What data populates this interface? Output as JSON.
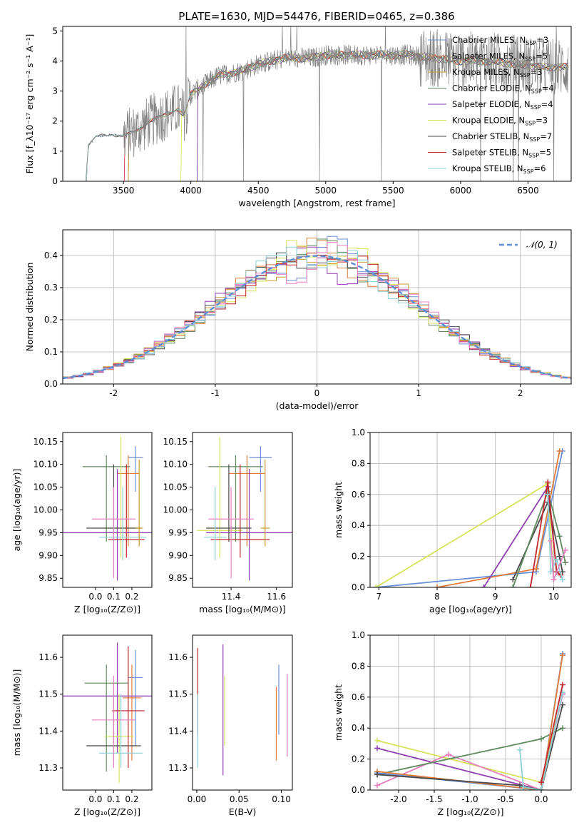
{
  "figure": {
    "title": "PLATE=1630, MJD=54476, FIBERID=0465, z=0.386"
  },
  "colors": {
    "chabrier_miles": "#6a8fd6",
    "salpeter_miles": "#e07b39",
    "kroupa_miles": "#c99a2e",
    "chabrier_elodie": "#5f8a5f",
    "salpeter_elodie": "#8e3fb0",
    "kroupa_elodie": "#d6e35a",
    "chabrier_stelib": "#4a4a4a",
    "salpeter_stelib": "#c1272d",
    "kroupa_stelib": "#8ecfd6",
    "extra_pink": "#e67fbf",
    "spectrum": "#808080"
  },
  "chart_data": [
    {
      "id": "spectrum",
      "type": "line",
      "xlabel": "wavelength [Angstrom, rest frame]",
      "ylabel": "Flux [f_λ10⁻¹⁷ erg cm⁻² s⁻¹ A⁻¹]",
      "xlim": [
        3050,
        6820
      ],
      "ylim": [
        0,
        5.15
      ],
      "xticks": [
        3500,
        4000,
        4500,
        5000,
        5500,
        6000,
        6500
      ],
      "yticks": [
        0,
        1,
        2,
        3,
        4,
        5
      ],
      "legend_position": "top-right",
      "spectrum_anchors": {
        "x": [
          3220,
          3240,
          3300,
          3400,
          3500,
          3600,
          3700,
          3800,
          3900,
          3950,
          4000,
          4100,
          4200,
          4300,
          4400,
          4500,
          4600,
          4700,
          4800,
          4900,
          5000,
          5200,
          5400,
          5600,
          5800,
          6000,
          6200,
          6400,
          6600,
          6800
        ],
        "y": [
          0,
          1.2,
          1.5,
          1.55,
          1.5,
          1.7,
          2.0,
          2.2,
          2.4,
          2.2,
          2.9,
          3.2,
          3.5,
          3.6,
          3.7,
          3.9,
          4.0,
          4.1,
          4.1,
          4.1,
          4.2,
          4.2,
          4.2,
          4.2,
          4.1,
          4.0,
          4.0,
          3.9,
          3.8,
          3.8
        ]
      },
      "series": [
        {
          "name": "Chabrier MILES",
          "nssp": "3",
          "color_key": "chabrier_miles"
        },
        {
          "name": "Salpeter MILES",
          "nssp": "5",
          "color_key": "salpeter_miles"
        },
        {
          "name": "Kroupa MILES",
          "nssp": "3",
          "color_key": "kroupa_miles"
        },
        {
          "name": "Chabrier ELODIE",
          "nssp": "4",
          "color_key": "chabrier_elodie"
        },
        {
          "name": "Salpeter ELODIE",
          "nssp": "4",
          "color_key": "salpeter_elodie"
        },
        {
          "name": "Kroupa ELODIE",
          "nssp": "3",
          "color_key": "kroupa_elodie"
        },
        {
          "name": "Chabrier STELIB",
          "nssp": "7",
          "color_key": "chabrier_stelib"
        },
        {
          "name": "Salpeter STELIB",
          "nssp": "5",
          "color_key": "salpeter_stelib"
        },
        {
          "name": "Kroupa STELIB",
          "nssp": "6",
          "color_key": "kroupa_stelib"
        }
      ]
    },
    {
      "id": "residuals",
      "type": "histogram",
      "xlabel": "(data-model)/error",
      "ylabel": "Normed distribution",
      "xlim": [
        -2.5,
        2.5
      ],
      "ylim": [
        0,
        0.48
      ],
      "xticks": [
        -2,
        -1,
        0,
        1,
        2
      ],
      "yticks": [
        0.0,
        0.1,
        0.2,
        0.3,
        0.4
      ],
      "grid": true,
      "legend_position": "top-right",
      "legend_label": "𝒩(0, 1)"
    },
    {
      "id": "age_vs_Z",
      "type": "errorbar",
      "xlabel": "Z [log₁₀(Z/Z⊙)]",
      "ylabel": "age  [log₁₀(age/yr)]",
      "xlim": [
        -0.18,
        0.31
      ],
      "ylim": [
        9.83,
        10.17
      ],
      "xticks": [
        0.0,
        0.1,
        0.2
      ],
      "yticks": [
        9.85,
        9.9,
        9.95,
        10.0,
        10.05,
        10.1,
        10.15
      ],
      "points": [
        {
          "c": "chabrier_miles",
          "x": 0.22,
          "xe": 0.04,
          "y": 10.115,
          "ylo": 10.04,
          "yhi": 10.14
        },
        {
          "c": "salpeter_miles",
          "x": 0.18,
          "xe": 0.06,
          "y": 10.08,
          "ylo": 9.92,
          "yhi": 10.12
        },
        {
          "c": "chabrier_elodie",
          "x": 0.06,
          "xe": 0.13,
          "y": 10.095,
          "ylo": 9.93,
          "yhi": 10.12
        },
        {
          "c": "salpeter_elodie",
          "x": 0.12,
          "xe": 0.3,
          "y": 9.95,
          "ylo": 9.845,
          "yhi": 10.09
        },
        {
          "c": "kroupa_elodie",
          "x": 0.14,
          "xe": 0.1,
          "y": 9.96,
          "ylo": 9.895,
          "yhi": 10.16
        },
        {
          "c": "chabrier_stelib",
          "x": 0.1,
          "xe": 0.15,
          "y": 9.96,
          "ylo": 9.93,
          "yhi": 10.1
        },
        {
          "c": "salpeter_stelib",
          "x": 0.17,
          "xe": 0.1,
          "y": 9.935,
          "ylo": 9.895,
          "yhi": 10.1
        },
        {
          "c": "kroupa_stelib",
          "x": 0.15,
          "xe": 0.13,
          "y": 9.94,
          "ylo": 9.89,
          "yhi": 10.05
        },
        {
          "c": "extra_pink",
          "x": 0.1,
          "xe": 0.12,
          "y": 9.98,
          "ylo": 9.85,
          "yhi": 10.05
        },
        {
          "c": "kroupa_miles",
          "x": 0.24,
          "xe": 0.02,
          "y": 9.96,
          "ylo": 9.92,
          "yhi": 10.11
        }
      ]
    },
    {
      "id": "age_vs_mass",
      "type": "errorbar",
      "xlabel": "mass [log₁₀(M/M⊙)]",
      "ylabel": "",
      "xlim": [
        11.23,
        11.67
      ],
      "ylim": [
        9.83,
        10.17
      ],
      "xticks": [
        11.4,
        11.6
      ],
      "yticks": [
        9.85,
        9.9,
        9.95,
        10.0,
        10.05,
        10.1,
        10.15
      ],
      "points": [
        {
          "c": "chabrier_miles",
          "x": 11.53,
          "xe": 0.05,
          "y": 10.115,
          "ylo": 10.04,
          "yhi": 10.14
        },
        {
          "c": "salpeter_miles",
          "x": 11.47,
          "xe": 0.08,
          "y": 10.08,
          "ylo": 9.92,
          "yhi": 10.12
        },
        {
          "c": "chabrier_elodie",
          "x": 11.42,
          "xe": 0.12,
          "y": 10.095,
          "ylo": 9.93,
          "yhi": 10.12
        },
        {
          "c": "salpeter_elodie",
          "x": 11.48,
          "xe": 0.19,
          "y": 9.95,
          "ylo": 9.845,
          "yhi": 10.09
        },
        {
          "c": "kroupa_elodie",
          "x": 11.35,
          "xe": 0.1,
          "y": 9.955,
          "ylo": 9.895,
          "yhi": 10.16
        },
        {
          "c": "chabrier_stelib",
          "x": 11.39,
          "xe": 0.1,
          "y": 9.96,
          "ylo": 9.93,
          "yhi": 10.1
        },
        {
          "c": "salpeter_stelib",
          "x": 11.44,
          "xe": 0.13,
          "y": 9.935,
          "ylo": 9.895,
          "yhi": 10.1
        },
        {
          "c": "kroupa_stelib",
          "x": 11.33,
          "xe": 0.05,
          "y": 9.94,
          "ylo": 9.89,
          "yhi": 10.05
        },
        {
          "c": "extra_pink",
          "x": 11.4,
          "xe": 0.1,
          "y": 9.98,
          "ylo": 9.85,
          "yhi": 10.05
        },
        {
          "c": "kroupa_miles",
          "x": 11.55,
          "xe": 0.02,
          "y": 9.96,
          "ylo": 9.92,
          "yhi": 10.11
        }
      ]
    },
    {
      "id": "weight_vs_age",
      "type": "line",
      "xlabel": "age  [log₁₀(age/yr)]",
      "ylabel": "mass weight",
      "xlim": [
        6.85,
        10.3
      ],
      "ylim": [
        0,
        1.0
      ],
      "xticks": [
        7,
        8,
        9,
        10
      ],
      "yticks": [
        0.0,
        0.2,
        0.4,
        0.6,
        0.8,
        1.0
      ],
      "grid": true,
      "series": [
        {
          "c": "chabrier_miles",
          "x": [
            6.95,
            9.7,
            10.15
          ],
          "y": [
            0.0,
            0.1,
            0.88
          ]
        },
        {
          "c": "salpeter_miles",
          "x": [
            8.0,
            9.7,
            10.1
          ],
          "y": [
            0.0,
            0.12,
            0.88
          ]
        },
        {
          "c": "kroupa_elodie",
          "x": [
            6.95,
            9.9,
            10.0
          ],
          "y": [
            0.0,
            0.67,
            0.05
          ]
        },
        {
          "c": "salpeter_elodie",
          "x": [
            8.8,
            9.9,
            10.05
          ],
          "y": [
            0.0,
            0.65,
            0.1
          ]
        },
        {
          "c": "chabrier_stelib",
          "x": [
            9.3,
            9.9,
            10.1,
            10.15
          ],
          "y": [
            0.05,
            0.55,
            0.2,
            0.1
          ]
        },
        {
          "c": "chabrier_elodie",
          "x": [
            9.3,
            9.9,
            10.1,
            10.2
          ],
          "y": [
            0.0,
            0.62,
            0.33,
            0.16
          ]
        },
        {
          "c": "salpeter_stelib",
          "x": [
            9.6,
            9.9,
            10.05,
            10.12
          ],
          "y": [
            0.0,
            0.68,
            0.1,
            0.08
          ]
        },
        {
          "c": "kroupa_stelib",
          "x": [
            9.9,
            9.95,
            10.05,
            10.15
          ],
          "y": [
            0.6,
            0.1,
            0.18,
            0.05
          ]
        },
        {
          "c": "extra_pink",
          "x": [
            9.95,
            10.0,
            10.2
          ],
          "y": [
            0.3,
            0.05,
            0.24
          ]
        }
      ]
    },
    {
      "id": "mass_vs_Z",
      "type": "errorbar",
      "xlabel": "Z [log₁₀(Z/Z⊙)]",
      "ylabel": "mass [log₁₀(M/M⊙)]",
      "xlim": [
        -0.18,
        0.31
      ],
      "ylim": [
        11.24,
        11.66
      ],
      "xticks": [
        0.0,
        0.1,
        0.2
      ],
      "yticks": [
        11.3,
        11.4,
        11.5,
        11.6
      ],
      "points": [
        {
          "c": "chabrier_miles",
          "x": 0.22,
          "xe": 0.04,
          "y": 11.545,
          "ylo": 11.36,
          "yhi": 11.62
        },
        {
          "c": "salpeter_miles",
          "x": 0.2,
          "xe": 0.05,
          "y": 11.49,
          "ylo": 11.32,
          "yhi": 11.58
        },
        {
          "c": "chabrier_elodie",
          "x": 0.06,
          "xe": 0.12,
          "y": 11.53,
          "ylo": 11.29,
          "yhi": 11.58
        },
        {
          "c": "salpeter_elodie",
          "x": 0.12,
          "xe": 0.3,
          "y": 11.495,
          "ylo": 11.34,
          "yhi": 11.64
        },
        {
          "c": "kroupa_elodie",
          "x": 0.13,
          "xe": 0.08,
          "y": 11.385,
          "ylo": 11.26,
          "yhi": 11.5
        },
        {
          "c": "chabrier_stelib",
          "x": 0.1,
          "xe": 0.15,
          "y": 11.36,
          "ylo": 11.32,
          "yhi": 11.5
        },
        {
          "c": "salpeter_stelib",
          "x": 0.18,
          "xe": 0.09,
          "y": 11.455,
          "ylo": 11.3,
          "yhi": 11.63
        },
        {
          "c": "kroupa_stelib",
          "x": 0.14,
          "xe": 0.12,
          "y": 11.34,
          "ylo": 11.3,
          "yhi": 11.5
        },
        {
          "c": "extra_pink",
          "x": 0.1,
          "xe": 0.12,
          "y": 11.43,
          "ylo": 11.3,
          "yhi": 11.55
        }
      ]
    },
    {
      "id": "mass_vs_ebv",
      "type": "errorbar",
      "xlabel": "E(B-V)",
      "ylabel": "",
      "xlim": [
        -0.005,
        0.113
      ],
      "ylim": [
        11.24,
        11.66
      ],
      "xticks": [
        0.0,
        0.05,
        0.1
      ],
      "yticks": [
        11.3,
        11.4,
        11.5,
        11.6
      ],
      "points": [
        {
          "c": "salpeter_stelib",
          "x": 0.001,
          "y": 11.52,
          "ylo": 11.39,
          "yhi": 11.625
        },
        {
          "c": "kroupa_stelib",
          "x": 0.001,
          "y": 11.4,
          "ylo": 11.3,
          "yhi": 11.5
        },
        {
          "c": "salpeter_elodie",
          "x": 0.031,
          "y": 11.46,
          "ylo": 11.28,
          "yhi": 11.635
        },
        {
          "c": "kroupa_elodie",
          "x": 0.033,
          "y": 11.45,
          "ylo": 11.36,
          "yhi": 11.55
        },
        {
          "c": "salpeter_miles",
          "x": 0.094,
          "y": 11.42,
          "ylo": 11.32,
          "yhi": 11.52
        },
        {
          "c": "chabrier_miles",
          "x": 0.097,
          "y": 11.49,
          "ylo": 11.39,
          "yhi": 11.58
        },
        {
          "c": "extra_pink",
          "x": 0.107,
          "y": 11.45,
          "ylo": 11.33,
          "yhi": 11.555
        }
      ]
    },
    {
      "id": "weight_vs_Z",
      "type": "line",
      "xlabel": "Z [log₁₀(Z/Z⊙)]",
      "ylabel": "mass weight",
      "xlim": [
        -2.4,
        0.42
      ],
      "ylim": [
        0,
        1.0
      ],
      "xticks": [
        -2.0,
        -1.5,
        -1.0,
        -0.5,
        0.0
      ],
      "yticks": [
        0.0,
        0.2,
        0.4,
        0.6,
        0.8,
        1.0
      ],
      "grid": true,
      "series": [
        {
          "c": "kroupa_elodie",
          "x": [
            -2.3,
            0.0,
            0.3
          ],
          "y": [
            0.32,
            0.05,
            0.62
          ]
        },
        {
          "c": "salpeter_elodie",
          "x": [
            -2.3,
            0.0,
            0.3
          ],
          "y": [
            0.27,
            0.0,
            0.62
          ]
        },
        {
          "c": "extra_pink",
          "x": [
            -2.3,
            -1.3,
            0.0,
            0.3
          ],
          "y": [
            0.03,
            0.23,
            0.0,
            0.62
          ]
        },
        {
          "c": "chabrier_elodie",
          "x": [
            -2.3,
            0.0,
            0.3
          ],
          "y": [
            0.1,
            0.33,
            0.4
          ]
        },
        {
          "c": "chabrier_miles",
          "x": [
            -2.3,
            0.0,
            0.3
          ],
          "y": [
            0.11,
            0.0,
            0.88
          ]
        },
        {
          "c": "salpeter_miles",
          "x": [
            -2.3,
            0.0,
            0.3
          ],
          "y": [
            0.12,
            0.0,
            0.87
          ]
        },
        {
          "c": "chabrier_stelib",
          "x": [
            -2.3,
            -0.3,
            0.0,
            0.3
          ],
          "y": [
            0.1,
            0.03,
            0.0,
            0.55
          ]
        },
        {
          "c": "kroupa_stelib",
          "x": [
            -0.3,
            -0.25,
            0.0,
            0.3
          ],
          "y": [
            0.26,
            0.02,
            0.0,
            0.63
          ]
        },
        {
          "c": "salpeter_stelib",
          "x": [
            0.0,
            0.3
          ],
          "y": [
            0.05,
            0.68
          ]
        }
      ]
    }
  ]
}
